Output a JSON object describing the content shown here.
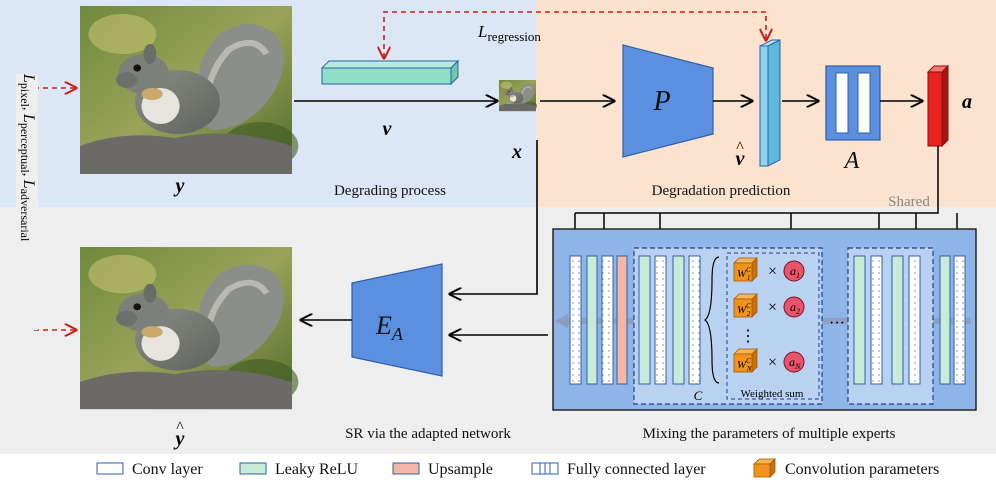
{
  "colors": {
    "bg_degrade": "#dbe7f5",
    "bg_predict": "#fbe3cf",
    "bg_bottom": "#eeeeee",
    "block_blue": "#5b8fdf",
    "block_blue_stroke": "#2f5fa8",
    "vector_light": "#8fd3ee",
    "vector_green": "#8fe0c8",
    "leaky": "#c9ecd8",
    "upsample": "#f3b7a8",
    "red_a": "#e8231e",
    "coef": "#e9546b",
    "mix_panel": "#8eb4e8",
    "mix_inner": "#b9d2f2",
    "arrow_red": "#c8201c",
    "shared_gray": "#888888"
  },
  "labels": {
    "y": "y",
    "v": "v",
    "x": "x",
    "v_hat": "v",
    "y_hat": "y",
    "a": "a",
    "loss_regression_script": "L",
    "loss_regression_sub": "regression",
    "loss_side_1_script": "L",
    "loss_side_1_sub": "pixel",
    "loss_side_2_script": "L",
    "loss_side_2_sub": "perceptual",
    "loss_side_3_script": "L",
    "loss_side_3_sub": "adversarial",
    "predictor": "P",
    "mlp": "A",
    "ea_main": "E",
    "ea_sub": "A",
    "shared": "Shared",
    "channels_c": "C",
    "weighted_sum": "Weighted sum",
    "ellipsis_h": "···",
    "ellipsis_v": "⋮",
    "times": "×",
    "expert_1_w": "W",
    "expert_1_sup": "C",
    "expert_1_sub": "1",
    "expert_1_a": "a",
    "expert_1_a_sub": "1",
    "expert_2_w": "W",
    "expert_2_sup": "C",
    "expert_2_sub": "2",
    "expert_2_a": "a",
    "expert_2_a_sub": "2",
    "expert_n_w": "W",
    "expert_n_sup": "C",
    "expert_n_sub": "N",
    "expert_n_a": "a",
    "expert_n_a_sub": "N"
  },
  "captions": {
    "degrading": "Degrading process",
    "prediction": "Degradation prediction",
    "sr": "SR via the adapted network",
    "mixing": "Mixing the parameters of multiple experts"
  },
  "legend": {
    "conv": "Conv layer",
    "leaky": "Leaky ReLU",
    "upsample": "Upsample",
    "fc": "Fully connected layer",
    "conv_params": "Convolution parameters"
  }
}
